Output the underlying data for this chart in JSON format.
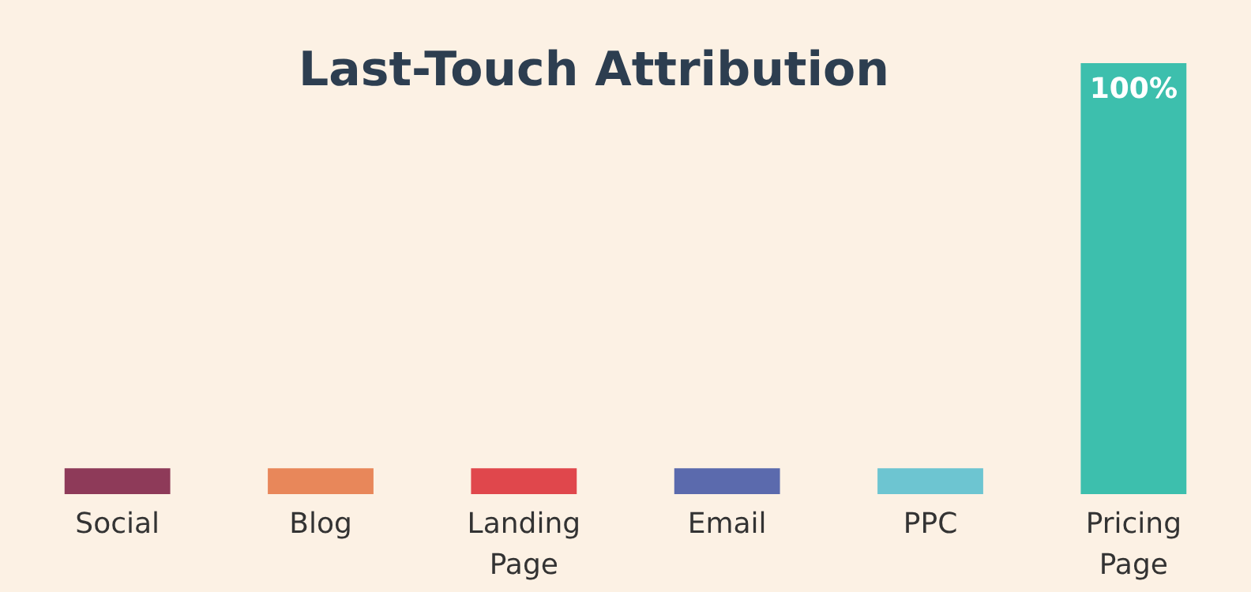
{
  "chart_data": {
    "type": "bar",
    "title": "Last-Touch Attribution",
    "categories": [
      "Social",
      "Blog",
      "Landing Page",
      "Email",
      "PPC",
      "Pricing Page"
    ],
    "values": [
      6,
      6,
      6,
      6,
      6,
      100
    ],
    "colors": [
      "#8e3a59",
      "#e8875a",
      "#e0474c",
      "#5b6aad",
      "#6dc5d1",
      "#3dbfad"
    ],
    "value_labels": [
      null,
      null,
      null,
      null,
      null,
      "100%"
    ]
  }
}
